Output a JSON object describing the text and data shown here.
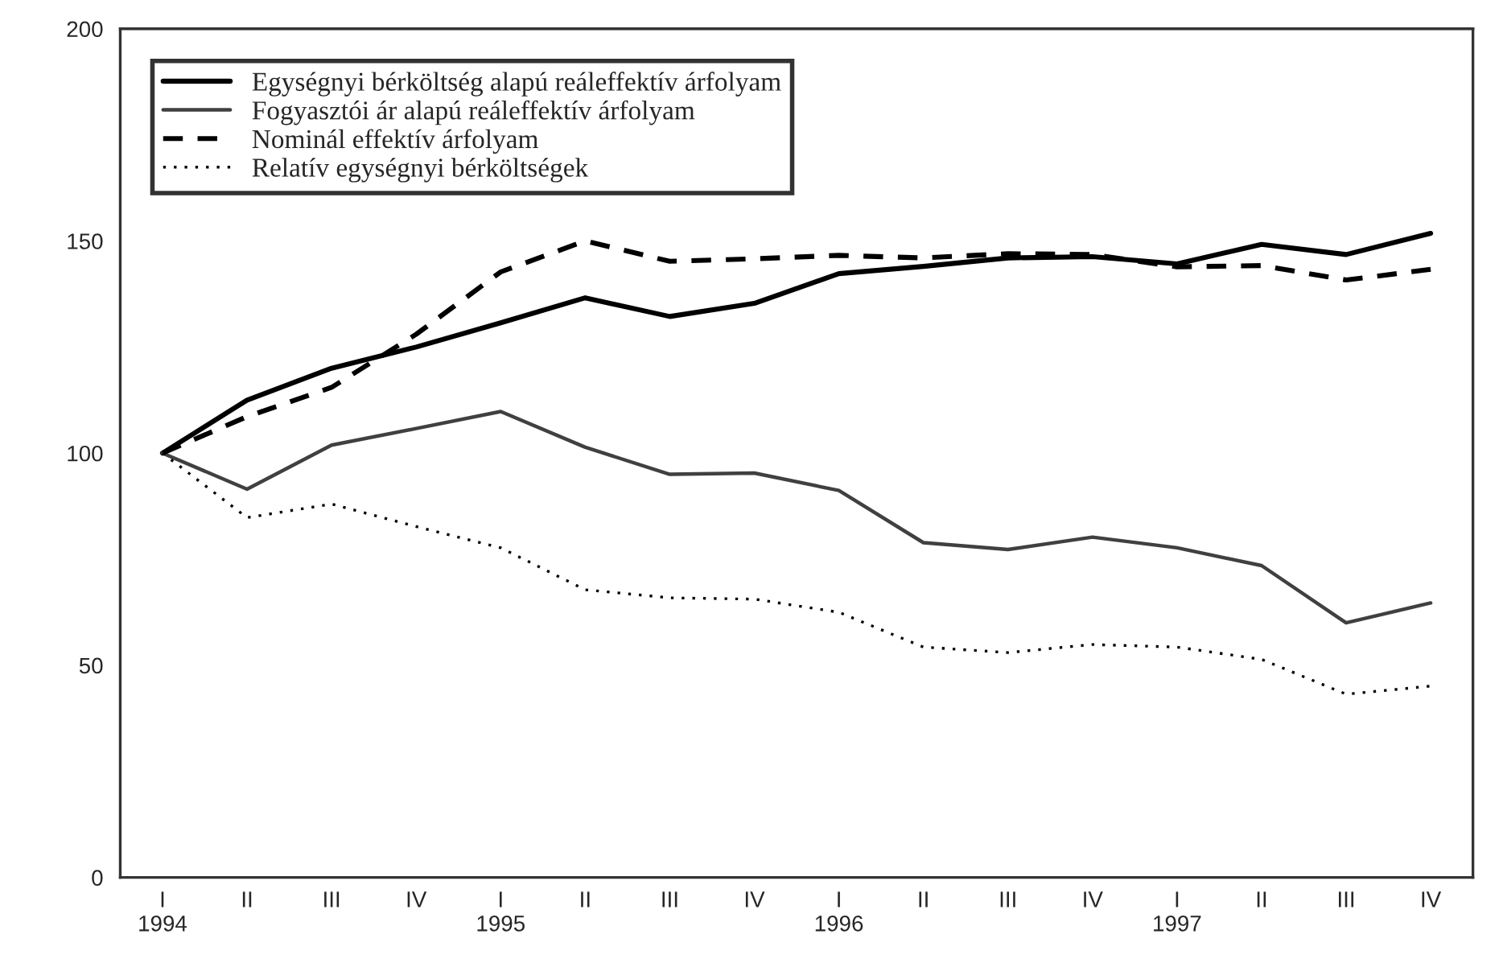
{
  "chart_data": {
    "type": "line",
    "categories": [
      "I\n1994",
      "II",
      "III",
      "IV",
      "I\n1995",
      "II",
      "III",
      "IV",
      "I\n1996",
      "II",
      "III",
      "IV",
      "I\n1997",
      "II",
      "III",
      "IV"
    ],
    "series": [
      {
        "name": "Egységnyi bérköltség alapú reáleffektív árfolyam",
        "color": "#000000",
        "line_style": "solid",
        "values": [
          100,
          112.5,
          120,
          125,
          130.7,
          136.6,
          132.2,
          135.3,
          142.3,
          144,
          146,
          146.3,
          144.6,
          149.2,
          146.8,
          151.8
        ]
      },
      {
        "name": "Fogyasztói ár alapú reáleffektív árfolyam",
        "color": "#404040",
        "line_style": "solid",
        "values": [
          100,
          91.5,
          101.9,
          105.8,
          109.8,
          101.4,
          95,
          95.3,
          91.2,
          78.9,
          77.3,
          80.2,
          77.7,
          73.5,
          60,
          64.7
        ]
      },
      {
        "name": "Nominál effektív árfolyam",
        "color": "#000000",
        "line_style": "dashed",
        "values": [
          100,
          108.6,
          115.5,
          128,
          142.7,
          150,
          145.2,
          145.8,
          146.6,
          146,
          147,
          146.8,
          143.9,
          144.2,
          140.8,
          143.3
        ]
      },
      {
        "name": "Relatív egységnyi bérköltségek",
        "color": "#000000",
        "line_style": "dotted",
        "values": [
          100,
          84.8,
          88,
          82.7,
          77.7,
          67.8,
          65.9,
          65.6,
          62.5,
          54.3,
          53,
          54.9,
          54.3,
          51.4,
          43.2,
          45.1
        ]
      }
    ],
    "ylim": [
      0,
      200
    ],
    "yticks": [
      0,
      50,
      100,
      150,
      200
    ],
    "grid": false,
    "legend": "top left",
    "marker": "none"
  }
}
